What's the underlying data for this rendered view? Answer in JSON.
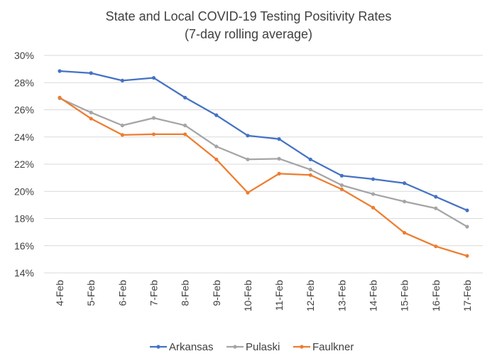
{
  "chart_data": {
    "type": "line",
    "title": [
      "State and Local COVID-19 Testing Positivity Rates",
      "(7-day rolling average)"
    ],
    "categories": [
      "4-Feb",
      "5-Feb",
      "6-Feb",
      "7-Feb",
      "8-Feb",
      "9-Feb",
      "10-Feb",
      "11-Feb",
      "12-Feb",
      "13-Feb",
      "14-Feb",
      "15-Feb",
      "16-Feb",
      "17-Feb"
    ],
    "ylim": [
      14,
      30
    ],
    "yticks": [
      14,
      16,
      18,
      20,
      22,
      24,
      26,
      28,
      30
    ],
    "ytick_labels": [
      "14%",
      "16%",
      "18%",
      "20%",
      "22%",
      "24%",
      "26%",
      "28%",
      "30%"
    ],
    "grid": true,
    "legend_position": "bottom",
    "series": [
      {
        "name": "Arkansas",
        "color": "#4472c4",
        "values": [
          28.85,
          28.7,
          28.15,
          28.35,
          26.9,
          25.6,
          24.1,
          23.85,
          22.35,
          21.15,
          20.9,
          20.6,
          19.6,
          18.6
        ]
      },
      {
        "name": "Pulaski",
        "color": "#a5a5a5",
        "values": [
          26.85,
          25.8,
          24.85,
          25.4,
          24.85,
          23.3,
          22.35,
          22.4,
          21.6,
          20.45,
          19.8,
          19.25,
          18.75,
          17.4
        ]
      },
      {
        "name": "Faulkner",
        "color": "#ed7d31",
        "values": [
          26.9,
          25.35,
          24.15,
          24.2,
          24.2,
          22.35,
          19.9,
          21.3,
          21.2,
          20.15,
          18.8,
          16.95,
          15.95,
          15.25
        ]
      }
    ]
  }
}
